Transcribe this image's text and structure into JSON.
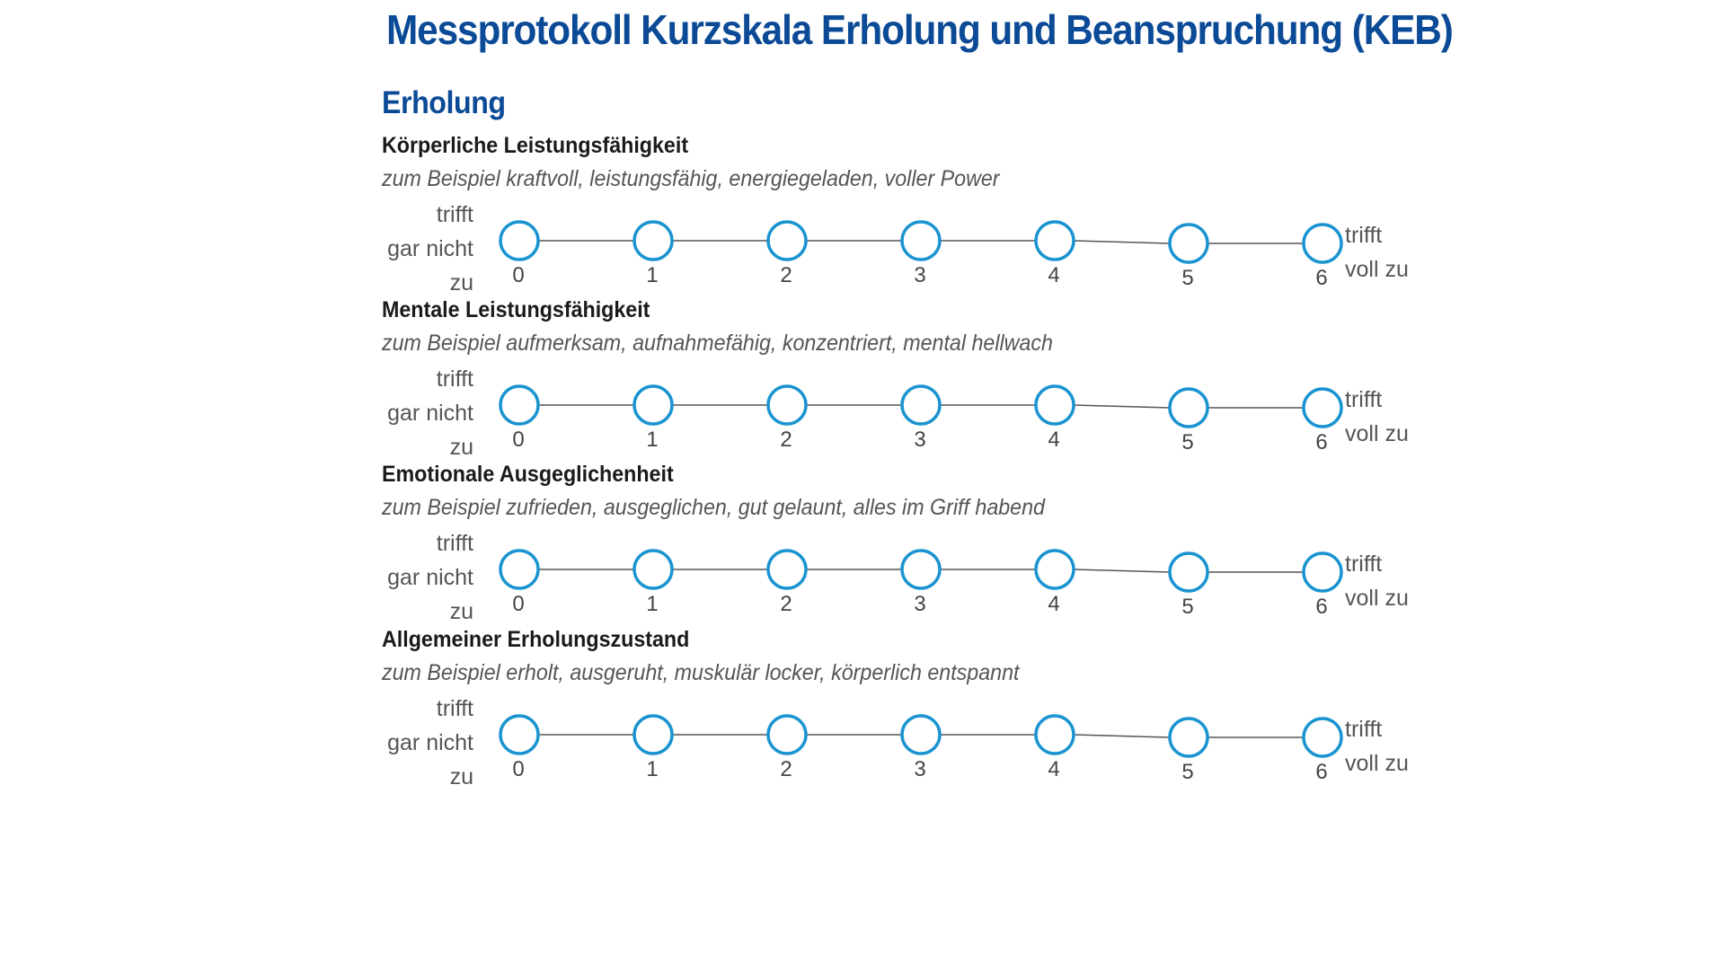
{
  "document": {
    "title": "Messprotokoll Kurzskala Erholung und Beanspruchung (KEB)",
    "section": "Erholung"
  },
  "scale": {
    "left_label": [
      "trifft",
      "gar nicht",
      "zu"
    ],
    "right_label": [
      "trifft",
      "voll zu"
    ],
    "values": [
      0,
      1,
      2,
      3,
      4,
      5,
      6
    ]
  },
  "items": [
    {
      "title": "Körperliche Leistungsfähigkeit",
      "example": "zum Beispiel kraftvoll, leistungsfähig, energiegeladen, voller Power"
    },
    {
      "title": "Mentale Leistungsfähigkeit",
      "example": "zum Beispiel aufmerksam, aufnahmefähig, konzentriert, mental hellwach"
    },
    {
      "title": "Emotionale Ausgeglichenheit",
      "example": "zum Beispiel zufrieden, ausgeglichen, gut gelaunt, alles im Griff habend"
    },
    {
      "title": "Allgemeiner Erholungszustand",
      "example": "zum Beispiel erholt, ausgeruht, muskulär locker, körperlich entspannt"
    }
  ],
  "colors": {
    "heading": "#0b4a96",
    "circle_stroke": "#1a94d0",
    "line": "#555555",
    "text_gray": "#555555"
  }
}
